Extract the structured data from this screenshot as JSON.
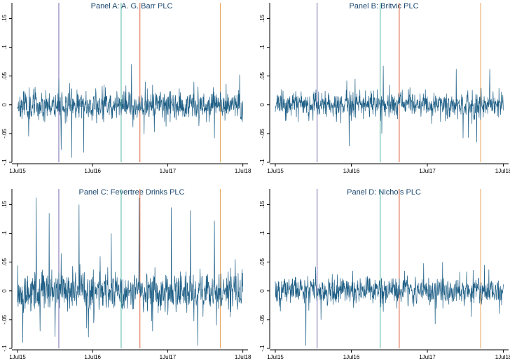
{
  "figure": {
    "description": "Daily returns for four UK soft drinks firms, July 2015 to July 2018"
  },
  "colors": {
    "series": "#1f5f86",
    "axis": "#000000",
    "title": "#1a476f",
    "event_lines": [
      "#7a6bb0",
      "#4fb59f",
      "#d9603b",
      "#e8a35a"
    ]
  },
  "chart_data": [
    {
      "type": "line",
      "title": "Panel A: A. G. Barr PLC",
      "x_ticks": [
        "1Jul15",
        "1Jul16",
        "1Jul17",
        "1Jul18"
      ],
      "y_ticks": [
        "-.1",
        "-.05",
        "0",
        ".05",
        ".1",
        ".15"
      ],
      "ylim": [
        -0.1,
        0.17
      ],
      "event_dates": [
        0.55,
        1.38,
        1.63,
        2.7
      ],
      "noise_scale": 0.013,
      "seed": 11,
      "spikes": [
        [
          0.58,
          -0.078
        ],
        [
          0.72,
          -0.092
        ],
        [
          0.88,
          -0.083
        ],
        [
          0.15,
          -0.055
        ],
        [
          0.55,
          0.045
        ],
        [
          1.15,
          0.035
        ],
        [
          2.35,
          0.04
        ],
        [
          2.62,
          -0.058
        ],
        [
          1.7,
          0.04
        ],
        [
          2.9,
          -0.02
        ]
      ]
    },
    {
      "type": "line",
      "title": "Panel B: Britvic PLC",
      "x_ticks": [
        "1Jul15",
        "1Jul16",
        "1Jul17",
        "1Jul18"
      ],
      "y_ticks": [
        "-.1",
        "-.05",
        "0",
        ".05",
        ".1",
        ".15"
      ],
      "ylim": [
        -0.1,
        0.17
      ],
      "event_dates": [
        0.55,
        1.38,
        1.63,
        2.7
      ],
      "noise_scale": 0.011,
      "seed": 23,
      "spikes": [
        [
          0.97,
          -0.072
        ],
        [
          1.42,
          0.068
        ],
        [
          1.4,
          -0.05
        ],
        [
          1.05,
          0.045
        ],
        [
          2.38,
          0.062
        ],
        [
          2.82,
          0.062
        ],
        [
          2.47,
          -0.058
        ],
        [
          2.65,
          -0.065
        ],
        [
          1.5,
          0.035
        ],
        [
          0.3,
          -0.03
        ]
      ]
    },
    {
      "type": "line",
      "title": "Panel C: Fevertree Drinks PLC",
      "x_ticks": [
        "1Jul15",
        "1Jul16",
        "1Jul17",
        "1Jul18"
      ],
      "y_ticks": [
        "-.1",
        "-.05",
        "0",
        ".05",
        ".1",
        ".15"
      ],
      "ylim": [
        -0.1,
        0.17
      ],
      "event_dates": [
        0.55,
        1.38,
        1.63,
        2.7
      ],
      "noise_scale": 0.018,
      "seed": 37,
      "spikes": [
        [
          0.07,
          -0.09
        ],
        [
          0.25,
          0.162
        ],
        [
          0.42,
          0.135
        ],
        [
          0.5,
          -0.08
        ],
        [
          0.58,
          0.065
        ],
        [
          0.82,
          0.15
        ],
        [
          0.92,
          -0.065
        ],
        [
          1.25,
          0.1
        ],
        [
          1.62,
          0.162
        ],
        [
          1.8,
          -0.07
        ],
        [
          2.05,
          0.145
        ],
        [
          2.3,
          0.14
        ],
        [
          2.4,
          -0.095
        ],
        [
          2.62,
          0.122
        ],
        [
          2.65,
          -0.06
        ],
        [
          2.9,
          0.055
        ],
        [
          1.1,
          0.06
        ],
        [
          0.3,
          -0.07
        ]
      ]
    },
    {
      "type": "line",
      "title": "Panel D: Nichols PLC",
      "x_ticks": [
        "1Jul15",
        "1Jul16",
        "1Jul17",
        "1Jul18"
      ],
      "y_ticks": [
        "-.1",
        "-.05",
        "0",
        ".05",
        ".1",
        ".15"
      ],
      "ylim": [
        -0.1,
        0.17
      ],
      "event_dates": [
        0.55,
        1.38,
        1.63,
        2.7
      ],
      "noise_scale": 0.012,
      "seed": 51,
      "spikes": [
        [
          0.4,
          -0.095
        ],
        [
          0.53,
          0.042
        ],
        [
          0.6,
          -0.05
        ],
        [
          1.02,
          0.035
        ],
        [
          1.95,
          0.048
        ],
        [
          2.2,
          0.05
        ],
        [
          2.58,
          -0.045
        ],
        [
          2.75,
          0.045
        ],
        [
          2.95,
          -0.04
        ],
        [
          1.7,
          0.035
        ]
      ]
    }
  ]
}
